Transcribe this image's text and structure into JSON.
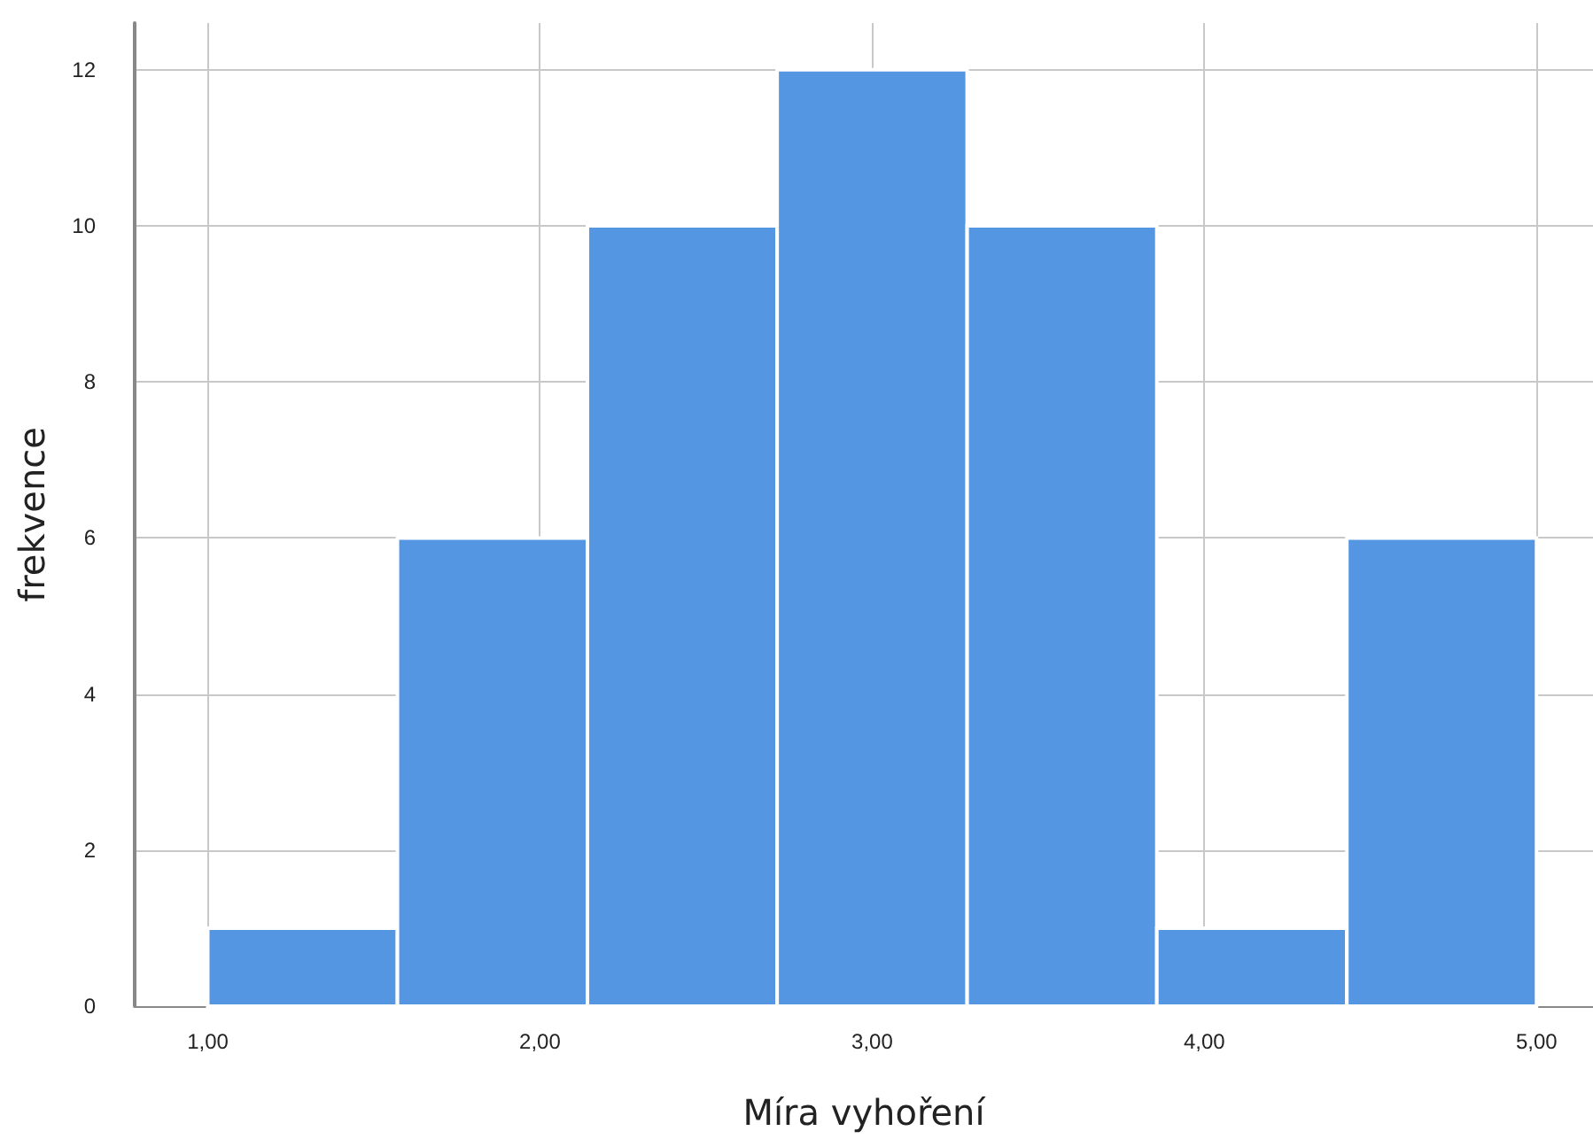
{
  "chart_data": {
    "type": "histogram",
    "xlabel": "Míra vyhoření",
    "ylabel": "frekvence",
    "bins": [
      1,
      1.571,
      2.143,
      2.714,
      3.286,
      3.857,
      4.429,
      5
    ],
    "values": [
      1,
      6,
      10,
      12,
      10,
      1,
      6
    ],
    "color": "#5596e3",
    "xlim": [
      0.78,
      5.17
    ],
    "xticks": [
      {
        "value": 1,
        "label": "1,00"
      },
      {
        "value": 2,
        "label": "2,00"
      },
      {
        "value": 3,
        "label": "3,00"
      },
      {
        "value": 4,
        "label": "4,00"
      },
      {
        "value": 5,
        "label": "5,00"
      }
    ],
    "ylim": [
      0,
      12.6
    ],
    "yticks": [
      0,
      2,
      4,
      6,
      8,
      10,
      12
    ],
    "grid": true
  }
}
